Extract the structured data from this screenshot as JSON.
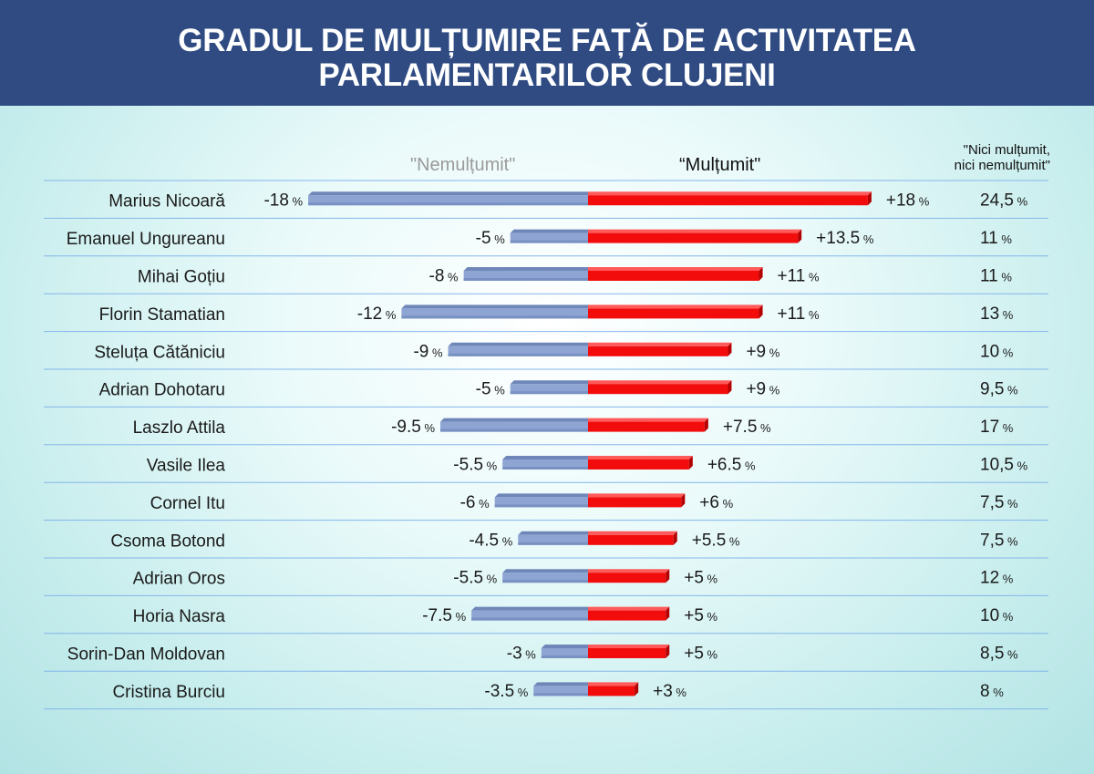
{
  "title": {
    "line1": "GRADUL DE MULȚUMIRE FAȚĂ DE ACTIVITATEA",
    "line2": "PARLAMENTARILOR CLUJENI"
  },
  "chart_data": {
    "type": "bar",
    "orientation": "horizontal-diverging",
    "columns": {
      "negative": "\"Nemulțumit\"",
      "positive": "“Mulțumit\"",
      "neutral_line1": "\"Nici mulțumit,",
      "neutral_line2": "nici nemulțumit\""
    },
    "rows": [
      {
        "name": "Marius Nicoară",
        "neg": -18,
        "neg_label": "-18",
        "pos": 18,
        "pos_label": "+18",
        "neutral": "24,5"
      },
      {
        "name": "Emanuel Ungureanu",
        "neg": -5,
        "neg_label": "-5",
        "pos": 13.5,
        "pos_label": "+13.5",
        "neutral": "11"
      },
      {
        "name": "Mihai Goțiu",
        "neg": -8,
        "neg_label": "-8",
        "pos": 11,
        "pos_label": "+11",
        "neutral": "11"
      },
      {
        "name": "Florin Stamatian",
        "neg": -12,
        "neg_label": "-12",
        "pos": 11,
        "pos_label": "+11",
        "neutral": "13"
      },
      {
        "name": "Steluța Cătăniciu",
        "neg": -9,
        "neg_label": "-9",
        "pos": 9,
        "pos_label": "+9",
        "neutral": "10"
      },
      {
        "name": "Adrian Dohotaru",
        "neg": -5,
        "neg_label": "-5",
        "pos": 9,
        "pos_label": "+9",
        "neutral": "9,5"
      },
      {
        "name": "Laszlo Attila",
        "neg": -9.5,
        "neg_label": "-9.5",
        "pos": 7.5,
        "pos_label": "+7.5",
        "neutral": "17"
      },
      {
        "name": "Vasile Ilea",
        "neg": -5.5,
        "neg_label": "-5.5",
        "pos": 6.5,
        "pos_label": "+6.5",
        "neutral": "10,5"
      },
      {
        "name": "Cornel Itu",
        "neg": -6,
        "neg_label": "-6",
        "pos": 6,
        "pos_label": "+6",
        "neutral": "7,5"
      },
      {
        "name": "Csoma Botond",
        "neg": -4.5,
        "neg_label": "-4.5",
        "pos": 5.5,
        "pos_label": "+5.5",
        "neutral": "7,5"
      },
      {
        "name": "Adrian Oros",
        "neg": -5.5,
        "neg_label": "-5.5",
        "pos": 5,
        "pos_label": "+5",
        "neutral": "12"
      },
      {
        "name": "Horia Nasra",
        "neg": -7.5,
        "neg_label": "-7.5",
        "pos": 5,
        "pos_label": "+5",
        "neutral": "10"
      },
      {
        "name": "Sorin-Dan Moldovan",
        "neg": -3,
        "neg_label": "-3",
        "pos": 5,
        "pos_label": "+5",
        "neutral": "8,5"
      },
      {
        "name": "Cristina Burciu",
        "neg": -3.5,
        "neg_label": "-3.5",
        "pos": 3,
        "pos_label": "+3",
        "neutral": "8"
      }
    ],
    "unit": "%",
    "xlim": [
      -18,
      18
    ],
    "colors": {
      "negative": "#8ea4d2",
      "positive": "#f20c0c",
      "header": "#2f4b82",
      "rule": "#84b6ea"
    }
  }
}
